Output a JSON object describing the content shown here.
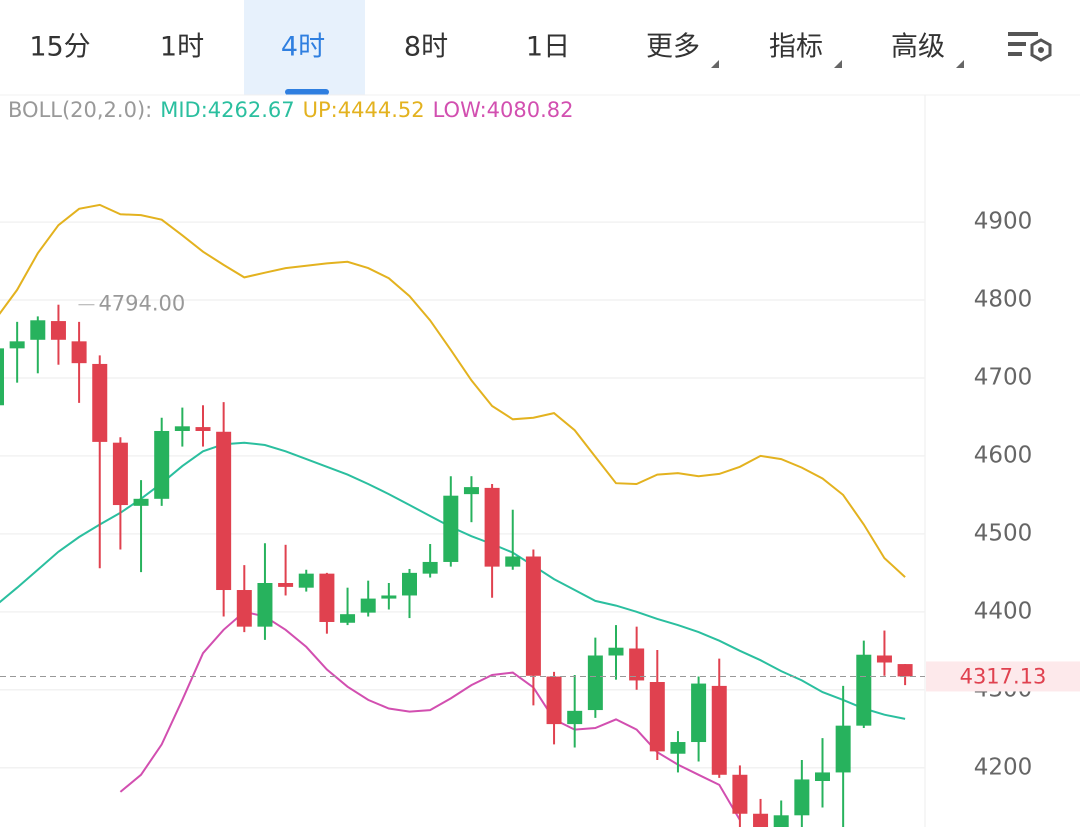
{
  "tabs": [
    "15分",
    "1时",
    "4时",
    "8时",
    "1日",
    "更多",
    "指标",
    "高级"
  ],
  "active_tab": 2,
  "chart_data": {
    "type": "candlestick",
    "indicator": {
      "name": "BOLL(20,2.0):",
      "items": [
        {
          "label": "MID:4262.67",
          "color": "#2bbf9f"
        },
        {
          "label": "UP:4444.52",
          "color": "#e3b21f"
        },
        {
          "label": "LOW:4080.82",
          "color": "#d24fb0"
        }
      ]
    },
    "up_color": "#27b25d",
    "down_color": "#e0414f",
    "open": [
      4665,
      4738,
      4749,
      4773,
      4747,
      4718,
      4617,
      4536,
      4545,
      4632,
      4637,
      4631,
      4428,
      4381,
      4437,
      4431,
      4449,
      4386,
      4399,
      4417,
      4421,
      4449,
      4464,
      4551,
      4559,
      4458,
      4471,
      4317,
      4256,
      4274,
      4344,
      4353,
      4310,
      4218,
      4233,
      4305,
      4191,
      4141,
      4120,
      4139,
      4183,
      4194,
      4254,
      4344,
      4333
    ],
    "high": [
      4774,
      4772,
      4779,
      4794,
      4772,
      4729,
      4624,
      4569,
      4649,
      4662,
      4665,
      4669,
      4460,
      4488,
      4486,
      4454,
      4450,
      4431,
      4440,
      4437,
      4455,
      4487,
      4574,
      4574,
      4564,
      4531,
      4480,
      4323,
      4319,
      4367,
      4383,
      4381,
      4351,
      4247,
      4317,
      4340,
      4203,
      4160,
      4158,
      4210,
      4238,
      4305,
      4363,
      4376,
      4333
    ],
    "low": [
      4665,
      4694,
      4706,
      4717,
      4668,
      4456,
      4480,
      4451,
      4536,
      4612,
      4612,
      4394,
      4374,
      4364,
      4421,
      4426,
      4372,
      4383,
      4394,
      4403,
      4392,
      4444,
      4458,
      4515,
      4418,
      4454,
      4280,
      4230,
      4226,
      4264,
      4313,
      4300,
      4210,
      4194,
      4208,
      4187,
      4124,
      4110,
      4110,
      4115,
      4149,
      4105,
      4251,
      4318,
      4306
    ],
    "close": [
      4738,
      4747,
      4774,
      4749,
      4719,
      4618,
      4537,
      4545,
      4632,
      4638,
      4632,
      4428,
      4381,
      4437,
      4432,
      4449,
      4387,
      4397,
      4417,
      4421,
      4450,
      4464,
      4549,
      4560,
      4458,
      4471,
      4318,
      4256,
      4273,
      4344,
      4354,
      4312,
      4221,
      4233,
      4308,
      4191,
      4141,
      4120,
      4139,
      4185,
      4194,
      4254,
      4345,
      4335,
      4317.13
    ],
    "series": [
      {
        "name": "UP",
        "color": "#e3b21f",
        "values": [
          4777,
          4813,
          4860,
          4896,
          4917,
          4922,
          4910,
          4909,
          4903,
          4883,
          4862,
          4845,
          4829,
          4835,
          4841,
          4844,
          4847,
          4849,
          4841,
          4828,
          4805,
          4774,
          4736,
          4697,
          4664,
          4647,
          4649,
          4655,
          4633,
          4599,
          4565,
          4564,
          4576,
          4578,
          4574,
          4577,
          4586,
          4600,
          4596,
          4585,
          4571,
          4550,
          4512,
          4469,
          4444.52
        ]
      },
      {
        "name": "MID",
        "color": "#2bbf9f",
        "values": [
          4409,
          4431,
          4454,
          4477,
          4496,
          4512,
          4527,
          4545,
          4565,
          4587,
          4606,
          4615,
          4617,
          4614,
          4606,
          4596,
          4586,
          4576,
          4564,
          4551,
          4537,
          4523,
          4509,
          4497,
          4487,
          4476,
          4459,
          4442,
          4428,
          4414,
          4408,
          4400,
          4391,
          4383,
          4374,
          4363,
          4350,
          4338,
          4324,
          4312,
          4297,
          4287,
          4276,
          4268,
          4262.67
        ]
      },
      {
        "name": "LOW",
        "color": "#d24fb0",
        "values": [
          null,
          null,
          null,
          null,
          null,
          null,
          4169,
          4191,
          4230,
          4287,
          4347,
          4377,
          4400,
          4394,
          4377,
          4355,
          4326,
          4304,
          4287,
          4276,
          4272,
          4274,
          4289,
          4306,
          4319,
          4322,
          4303,
          4262,
          4249,
          4251,
          4262,
          4249,
          4220,
          4204,
          4191,
          4178,
          4133,
          null,
          null,
          null,
          null,
          null,
          null,
          null,
          null
        ]
      }
    ],
    "max_marker": {
      "value": 4794,
      "label": "4794.00"
    },
    "last_price": {
      "value": 4317.13,
      "label": "4317.13"
    },
    "ylim": [
      4124,
      5063
    ],
    "yticks": [
      4200,
      4300,
      4400,
      4500,
      4600,
      4700,
      4800,
      4900
    ],
    "grid": true
  }
}
